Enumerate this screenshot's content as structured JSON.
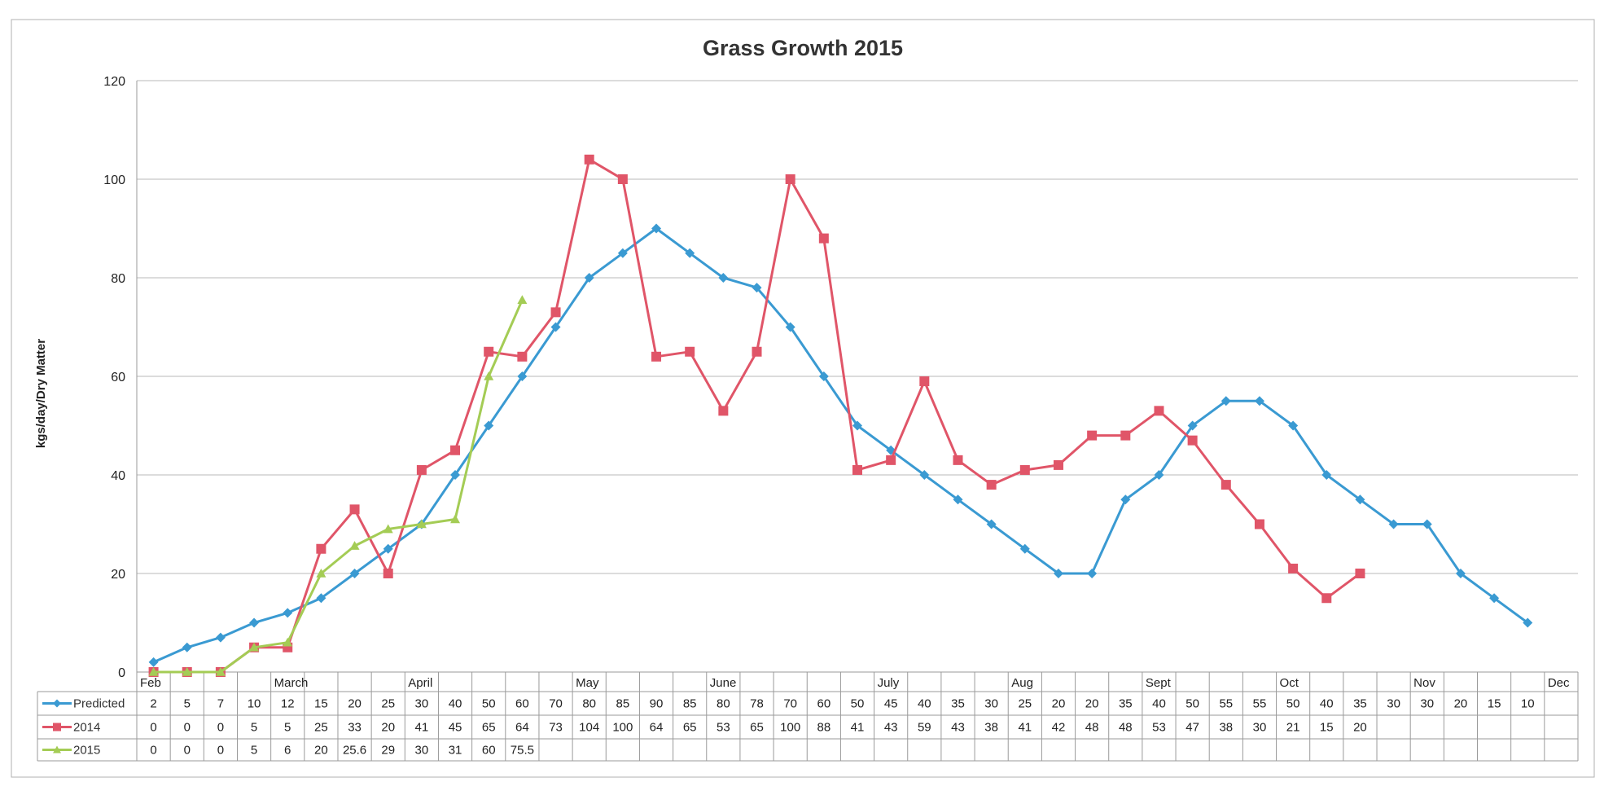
{
  "chart_data": {
    "type": "line",
    "title": "Grass Growth 2015",
    "ylabel": "kgs/day/Dry Matter",
    "xlabel": "",
    "ylim": [
      0,
      120
    ],
    "yticks": [
      0,
      20,
      40,
      60,
      80,
      100,
      120
    ],
    "grid": true,
    "legend_position": "data-table-left",
    "months": [
      {
        "label": "Feb",
        "col": 0
      },
      {
        "label": "March",
        "col": 4
      },
      {
        "label": "April",
        "col": 8
      },
      {
        "label": "May",
        "col": 13
      },
      {
        "label": "June",
        "col": 17
      },
      {
        "label": "July",
        "col": 22
      },
      {
        "label": "Aug",
        "col": 26
      },
      {
        "label": "Sept",
        "col": 30
      },
      {
        "label": "Oct",
        "col": 34
      },
      {
        "label": "Nov",
        "col": 38
      },
      {
        "label": "Dec",
        "col": 42
      }
    ],
    "num_columns": 43,
    "series": [
      {
        "name": "Predicted",
        "color": "#3a9ad2",
        "marker": "diamond",
        "values": [
          2,
          5,
          7,
          10,
          12,
          15,
          20,
          25,
          30,
          40,
          50,
          60,
          70,
          80,
          85,
          90,
          85,
          80,
          78,
          70,
          60,
          50,
          45,
          40,
          35,
          30,
          25,
          20,
          20,
          35,
          40,
          50,
          55,
          55,
          50,
          40,
          35,
          30,
          30,
          20,
          15,
          10
        ],
        "labels": [
          "2",
          "5",
          "7",
          "10",
          "12",
          "15",
          "20",
          "25",
          "30",
          "40",
          "50",
          "60",
          "70",
          "80",
          "85",
          "90",
          "85",
          "80",
          "78",
          "70",
          "60",
          "50",
          "45",
          "40",
          "35",
          "30",
          "25",
          "20",
          "20",
          "35",
          "40",
          "50",
          "55",
          "55",
          "50",
          "40",
          "35",
          "30",
          "30",
          "20",
          "15",
          "10"
        ]
      },
      {
        "name": "2014",
        "color": "#e05568",
        "marker": "square",
        "values": [
          0,
          0,
          0,
          5,
          5,
          25,
          33,
          20,
          41,
          45,
          65,
          64,
          73,
          104,
          100,
          64,
          65,
          53,
          65,
          100,
          88,
          41,
          43,
          59,
          43,
          38,
          41,
          42,
          48,
          48,
          53,
          47,
          38,
          30,
          21,
          15,
          20
        ],
        "labels": [
          "0",
          "0",
          "0",
          "5",
          "5",
          "25",
          "33",
          "20",
          "41",
          "45",
          "65",
          "64",
          "73",
          "104",
          "100",
          "64",
          "65",
          "53",
          "65",
          "100",
          "88",
          "41",
          "43",
          "59",
          "43",
          "38",
          "41",
          "42",
          "48",
          "48",
          "53",
          "47",
          "38",
          "30",
          "21",
          "15",
          "20"
        ]
      },
      {
        "name": "2015",
        "color": "#a4cc55",
        "marker": "triangle",
        "values": [
          0,
          0,
          0,
          5,
          6,
          20,
          25.6,
          29,
          30,
          31,
          60,
          75.5
        ],
        "labels": [
          "0",
          "0",
          "0",
          "5",
          "6",
          "20",
          "25.6",
          "29",
          "30",
          "31",
          "60",
          "75.5"
        ]
      }
    ]
  }
}
